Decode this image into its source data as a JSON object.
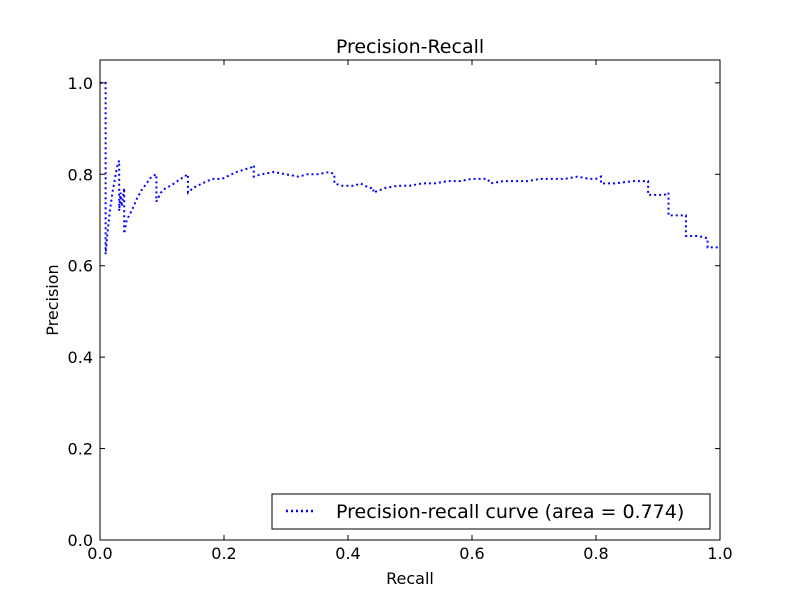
{
  "chart_data": {
    "type": "line",
    "title": "Precision-Recall",
    "xlabel": "Recall",
    "ylabel": "Precision",
    "xlim": [
      0.0,
      1.0
    ],
    "ylim": [
      0.0,
      1.05
    ],
    "x_ticks": [
      0.0,
      0.2,
      0.4,
      0.6,
      0.8,
      1.0
    ],
    "x_tick_labels": [
      "0.0",
      "0.2",
      "0.4",
      "0.6",
      "0.8",
      "1.0"
    ],
    "y_ticks": [
      0.0,
      0.2,
      0.4,
      0.6,
      0.8,
      1.0
    ],
    "y_tick_labels": [
      "0.0",
      "0.2",
      "0.4",
      "0.6",
      "0.8",
      "1.0"
    ],
    "grid": false,
    "legend_position": "lower right",
    "series": [
      {
        "name": "Precision-recall curve (area = 0.774)",
        "color": "#0000ff",
        "line_style": "dotted",
        "x": [
          0.0,
          0.009,
          0.009,
          0.012,
          0.016,
          0.02,
          0.024,
          0.028,
          0.031,
          0.031,
          0.033,
          0.035,
          0.039,
          0.039,
          0.043,
          0.051,
          0.059,
          0.067,
          0.075,
          0.083,
          0.091,
          0.091,
          0.098,
          0.106,
          0.114,
          0.13,
          0.142,
          0.142,
          0.15,
          0.165,
          0.181,
          0.197,
          0.22,
          0.244,
          0.248,
          0.248,
          0.26,
          0.28,
          0.3,
          0.32,
          0.335,
          0.35,
          0.37,
          0.378,
          0.378,
          0.39,
          0.41,
          0.42,
          0.435,
          0.441,
          0.441,
          0.46,
          0.48,
          0.5,
          0.52,
          0.54,
          0.56,
          0.58,
          0.6,
          0.61,
          0.625,
          0.63,
          0.65,
          0.67,
          0.69,
          0.71,
          0.73,
          0.75,
          0.77,
          0.79,
          0.8,
          0.808,
          0.808,
          0.83,
          0.86,
          0.884,
          0.884,
          0.91,
          0.917,
          0.917,
          0.935,
          0.945,
          0.945,
          0.965,
          0.98,
          0.98,
          0.99,
          1.0
        ],
        "y": [
          1.0,
          1.0,
          0.625,
          0.67,
          0.72,
          0.76,
          0.79,
          0.82,
          0.83,
          0.72,
          0.76,
          0.73,
          0.77,
          0.67,
          0.7,
          0.72,
          0.745,
          0.765,
          0.78,
          0.795,
          0.8,
          0.74,
          0.76,
          0.77,
          0.775,
          0.79,
          0.8,
          0.76,
          0.77,
          0.78,
          0.79,
          0.79,
          0.805,
          0.815,
          0.82,
          0.795,
          0.8,
          0.805,
          0.8,
          0.795,
          0.8,
          0.8,
          0.805,
          0.8,
          0.78,
          0.775,
          0.775,
          0.78,
          0.77,
          0.77,
          0.76,
          0.77,
          0.775,
          0.775,
          0.78,
          0.78,
          0.785,
          0.785,
          0.79,
          0.79,
          0.79,
          0.78,
          0.785,
          0.785,
          0.785,
          0.79,
          0.79,
          0.79,
          0.795,
          0.79,
          0.79,
          0.795,
          0.78,
          0.78,
          0.785,
          0.785,
          0.755,
          0.755,
          0.76,
          0.71,
          0.71,
          0.71,
          0.665,
          0.665,
          0.66,
          0.64,
          0.64,
          0.64
        ]
      }
    ]
  }
}
